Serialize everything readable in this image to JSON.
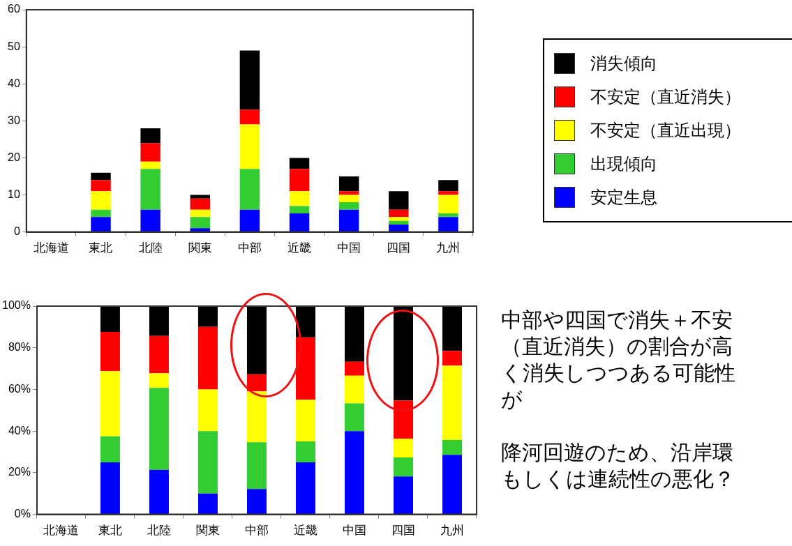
{
  "chart_data": [
    {
      "type": "bar",
      "stacked": true,
      "categories": [
        "北海道",
        "東北",
        "北陸",
        "関東",
        "中部",
        "近畿",
        "中国",
        "四国",
        "九州"
      ],
      "legend": "right",
      "ylim": [
        0,
        60
      ],
      "yticks": [
        0,
        10,
        20,
        30,
        40,
        50,
        60
      ],
      "series": [
        {
          "name": "安定生息",
          "color": "#0000ff",
          "values": [
            0,
            4,
            6,
            1,
            6,
            5,
            6,
            2,
            4
          ]
        },
        {
          "name": "出現傾向",
          "color": "#33cc33",
          "values": [
            0,
            2,
            11,
            3,
            11,
            2,
            2,
            1,
            1
          ]
        },
        {
          "name": "不安定（直近出現）",
          "color": "#ffff00",
          "values": [
            0,
            5,
            2,
            2,
            12,
            4,
            2,
            1,
            5
          ]
        },
        {
          "name": "不安定（直近消失）",
          "color": "#ff0000",
          "values": [
            0,
            3,
            5,
            3,
            4,
            6,
            1,
            2,
            1
          ]
        },
        {
          "name": "消失傾向",
          "color": "#000000",
          "values": [
            0,
            2,
            4,
            1,
            16,
            3,
            4,
            5,
            3
          ]
        }
      ]
    },
    {
      "type": "bar",
      "stacked": true,
      "categories": [
        "北海道",
        "東北",
        "北陸",
        "関東",
        "中部",
        "近畿",
        "中国",
        "四国",
        "九州"
      ],
      "ylim": [
        0,
        100
      ],
      "yticks": [
        {
          "value": 0,
          "label": "0%"
        },
        {
          "value": 20,
          "label": "20%"
        },
        {
          "value": 40,
          "label": "40%"
        },
        {
          "value": 60,
          "label": "60%"
        },
        {
          "value": 80,
          "label": "80%"
        },
        {
          "value": 100,
          "label": "100%"
        }
      ],
      "series": [
        {
          "color": "#0000ff",
          "values": [
            0,
            25,
            21.4,
            10,
            12.2,
            25,
            40,
            18.2,
            28.6
          ]
        },
        {
          "color": "#33cc33",
          "values": [
            0,
            12.5,
            39.3,
            30,
            22.4,
            10,
            13.3,
            9.1,
            7.1
          ]
        },
        {
          "color": "#ffff00",
          "values": [
            0,
            31.3,
            7.1,
            20,
            24.5,
            20,
            13.3,
            9.1,
            35.7
          ]
        },
        {
          "color": "#ff0000",
          "values": [
            0,
            18.8,
            17.9,
            30,
            8.2,
            30,
            6.7,
            18.2,
            7.1
          ]
        },
        {
          "color": "#000000",
          "values": [
            0,
            12.5,
            14.3,
            10,
            32.7,
            15,
            26.7,
            45.5,
            21.4
          ]
        }
      ],
      "annotations": [
        "中部や四国で消失＋不安（直近消失）の割合が高く消失しつつある可能性が",
        "降河回遊のため、沿岸環もしくは連続性の悪化？"
      ]
    }
  ]
}
